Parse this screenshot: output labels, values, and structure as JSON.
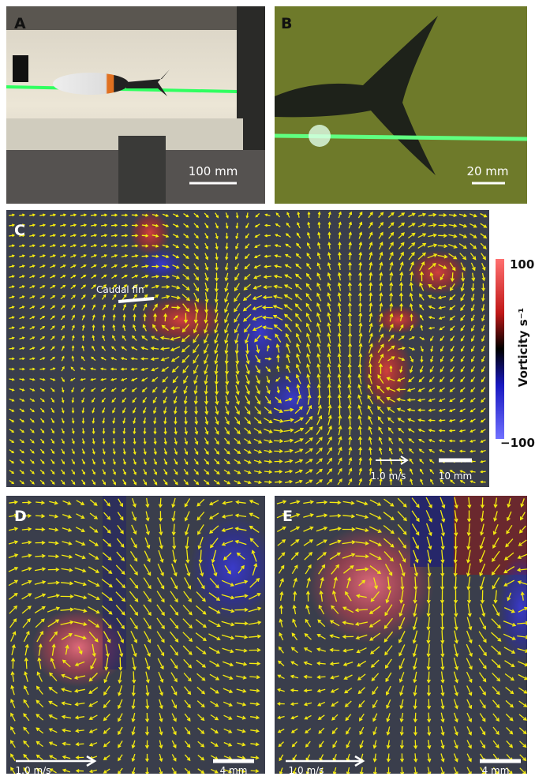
{
  "panels": [
    {
      "label": "A",
      "scale_bar": "100 mm"
    },
    {
      "label": "B",
      "scale_bar": "20 mm"
    },
    {
      "label": "C",
      "annotation": "Caudal fin",
      "velocity_scale": "1.0 m/s",
      "scale_bar": "10 mm"
    },
    {
      "label": "D",
      "velocity_scale": "1.0 m/s",
      "scale_bar": "4 mm"
    },
    {
      "label": "E",
      "velocity_scale": "1.0 m/s",
      "scale_bar": "4 mm"
    }
  ],
  "colorbar": {
    "title": "Vorticity s⁻¹",
    "max": "100",
    "min": "−100"
  }
}
